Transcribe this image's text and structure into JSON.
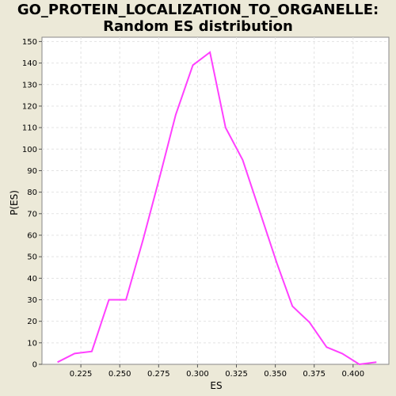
{
  "chart_data": {
    "type": "line",
    "title_line1": "GO_PROTEIN_LOCALIZATION_TO_ORGANELLE:",
    "title_line2": "Random ES distribution",
    "xlabel": "ES",
    "ylabel": "P(ES)",
    "xlim": [
      0.2,
      0.423
    ],
    "ylim": [
      0,
      152
    ],
    "x_ticks": [
      "0.225",
      "0.250",
      "0.275",
      "0.300",
      "0.325",
      "0.350",
      "0.375",
      "0.400"
    ],
    "y_ticks": [
      "0",
      "10",
      "20",
      "30",
      "40",
      "50",
      "60",
      "70",
      "80",
      "90",
      "100",
      "110",
      "120",
      "130",
      "140",
      "150"
    ],
    "grid": true,
    "series": [
      {
        "color": "#ff40ff",
        "x": [
          0.21,
          0.221,
          0.232,
          0.243,
          0.254,
          0.265,
          0.276,
          0.286,
          0.297,
          0.308,
          0.318,
          0.329,
          0.34,
          0.351,
          0.361,
          0.372,
          0.383,
          0.393,
          0.404,
          0.415
        ],
        "y": [
          1,
          5,
          6,
          30,
          30,
          58,
          88,
          116,
          139,
          145,
          110,
          95,
          71,
          47,
          27,
          19.5,
          8,
          5,
          0,
          1
        ]
      }
    ]
  }
}
